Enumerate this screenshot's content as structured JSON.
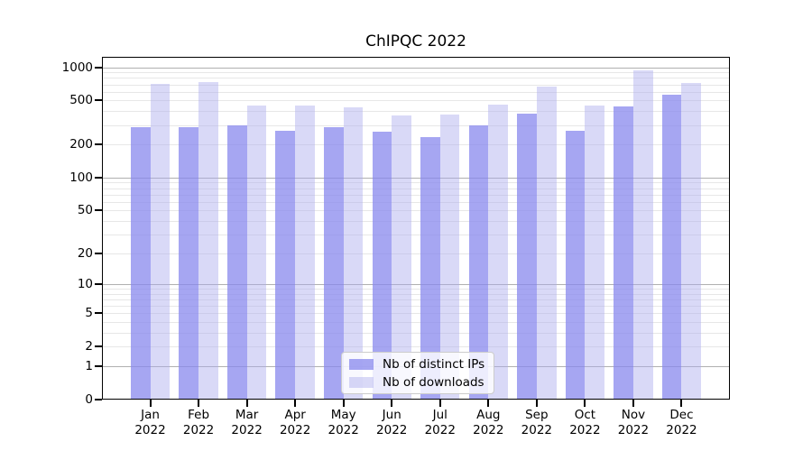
{
  "chart_data": {
    "type": "bar",
    "title": "ChIPQC 2022",
    "categories": [
      "Jan",
      "Feb",
      "Mar",
      "Apr",
      "May",
      "Jun",
      "Jul",
      "Aug",
      "Sep",
      "Oct",
      "Nov",
      "Dec"
    ],
    "year_line": "2022",
    "series": [
      {
        "name": "Nb of distinct IPs",
        "color": "#8888ee",
        "alpha": 0.75,
        "values": [
          286,
          288,
          296,
          267,
          289,
          260,
          234,
          296,
          384,
          264,
          446,
          567
        ]
      },
      {
        "name": "Nb of downloads",
        "color": "#aaaaee",
        "alpha": 0.45,
        "values": [
          706,
          731,
          452,
          449,
          430,
          367,
          375,
          455,
          666,
          449,
          937,
          715
        ]
      }
    ],
    "yscale": "log1p",
    "ylabel": "",
    "xlabel": "",
    "yticks": [
      0,
      1,
      2,
      5,
      10,
      20,
      50,
      100,
      200,
      500,
      1000
    ],
    "ylim": [
      0,
      1253
    ],
    "grid": {
      "major_ticks": [
        1,
        10,
        100,
        1000
      ],
      "major_color": "#b0b0b0",
      "minor_color": "#e7e7e7",
      "grid_on": true
    },
    "legend_position": "lower center"
  }
}
